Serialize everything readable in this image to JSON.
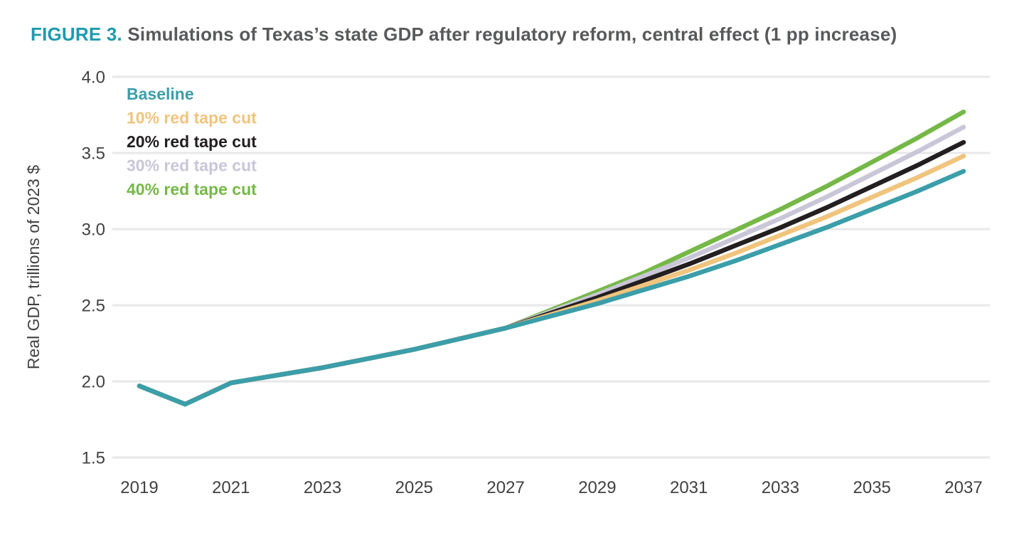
{
  "title": {
    "prefix": "FIGURE 3.",
    "text": " Simulations of Texas’s state GDP after regulatory reform, central effect (1 pp increase)",
    "prefix_color": "#1D9AAE",
    "text_color": "#58595B"
  },
  "chart_data": {
    "type": "line",
    "title": "Simulations of Texas's state GDP after regulatory reform, central effect (1 pp increase)",
    "xlabel": "",
    "ylabel": "Real GDP, trillions of 2023 $",
    "xlim": [
      2019,
      2037
    ],
    "ylim": [
      1.5,
      4.0
    ],
    "grid": "horizontal",
    "grid_color": "#E8E7EA",
    "tick_color": "#414042",
    "legend_position": "top-left-inside",
    "x": [
      2019,
      2020,
      2021,
      2022,
      2023,
      2024,
      2025,
      2026,
      2027,
      2028,
      2029,
      2030,
      2031,
      2032,
      2033,
      2034,
      2035,
      2036,
      2037
    ],
    "xticks": [
      2019,
      2021,
      2023,
      2025,
      2027,
      2029,
      2031,
      2033,
      2035,
      2037
    ],
    "yticks": [
      "1.5",
      "2.0",
      "2.5",
      "3.0",
      "3.5",
      "4.0"
    ],
    "series": [
      {
        "name": "Baseline",
        "color": "#3B9EA9",
        "values": [
          1.97,
          1.85,
          1.99,
          2.04,
          2.09,
          2.15,
          2.21,
          2.28,
          2.35,
          2.43,
          2.51,
          2.6,
          2.69,
          2.79,
          2.9,
          3.01,
          3.13,
          3.25,
          3.38
        ]
      },
      {
        "name": "10% red tape cut",
        "color": "#F0C47D",
        "values": [
          1.97,
          1.85,
          1.99,
          2.04,
          2.09,
          2.15,
          2.21,
          2.28,
          2.35,
          2.44,
          2.53,
          2.63,
          2.73,
          2.84,
          2.96,
          3.08,
          3.21,
          3.34,
          3.48
        ]
      },
      {
        "name": "20% red tape cut",
        "color": "#231F20",
        "values": [
          1.97,
          1.85,
          1.99,
          2.04,
          2.09,
          2.15,
          2.21,
          2.28,
          2.35,
          2.45,
          2.55,
          2.66,
          2.77,
          2.89,
          3.01,
          3.14,
          3.28,
          3.42,
          3.57
        ]
      },
      {
        "name": "30% red tape cut",
        "color": "#C9C6D8",
        "values": [
          1.97,
          1.85,
          1.99,
          2.04,
          2.09,
          2.15,
          2.21,
          2.28,
          2.35,
          2.46,
          2.57,
          2.69,
          2.81,
          2.94,
          3.07,
          3.21,
          3.36,
          3.51,
          3.67
        ]
      },
      {
        "name": "40% red tape cut",
        "color": "#76B848",
        "values": [
          1.97,
          1.85,
          1.99,
          2.04,
          2.09,
          2.15,
          2.21,
          2.28,
          2.35,
          2.47,
          2.59,
          2.71,
          2.85,
          2.99,
          3.13,
          3.28,
          3.44,
          3.6,
          3.77
        ]
      }
    ]
  }
}
